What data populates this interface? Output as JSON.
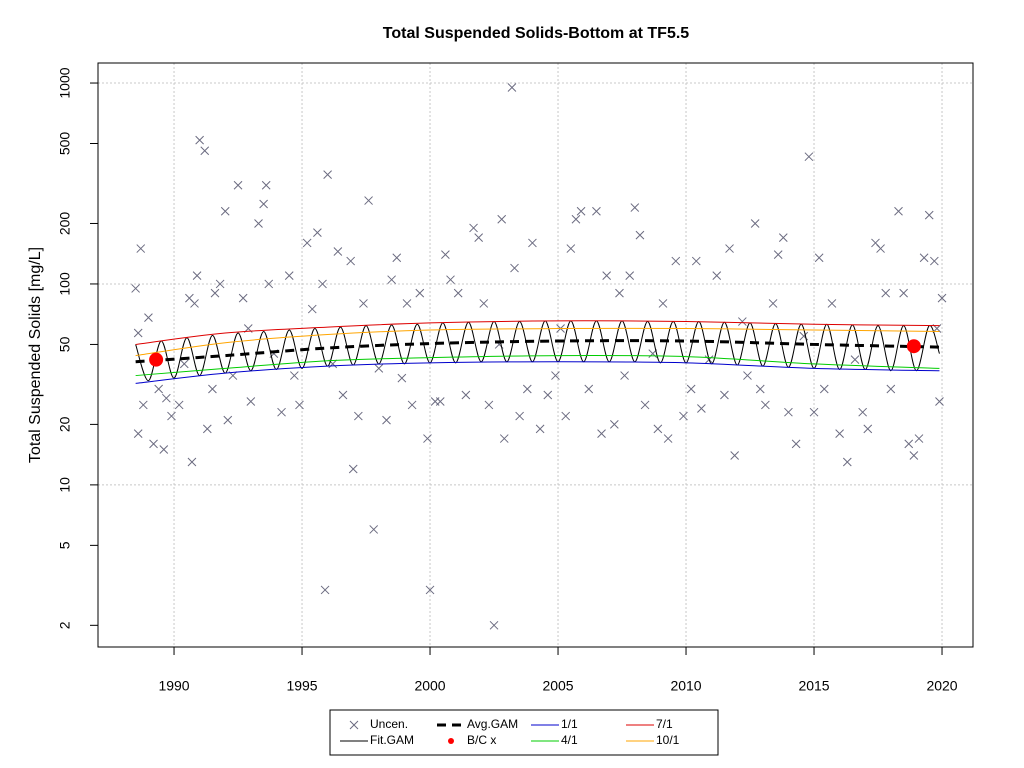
{
  "chart_data": {
    "type": "scatter",
    "title": "Total Suspended Solids-Bottom at TF5.5",
    "y_label": "Total Suspended Solids [mg/L]",
    "xlim": [
      1987.03,
      2021.21
    ],
    "xticks": [
      1990,
      1995,
      2000,
      2005,
      2010,
      2015,
      2020
    ],
    "ylim": [
      1.56,
      1258
    ],
    "yticks": [
      2,
      5,
      10,
      20,
      50,
      100,
      200,
      500,
      1000
    ],
    "log_y": true,
    "grid": true,
    "legend": "bottom",
    "series": [
      {
        "name": "Uncen.",
        "mode": "markers",
        "marker": "x",
        "color": "#6b6b80",
        "x": [
          1988.5,
          1988.6,
          1988.7,
          1988.6,
          1988.8,
          1989.0,
          1989.2,
          1989.4,
          1989.6,
          1989.7,
          1989.9,
          1990.2,
          1990.4,
          1990.6,
          1990.7,
          1990.8,
          1990.9,
          1991.0,
          1991.2,
          1991.3,
          1991.5,
          1991.6,
          1991.8,
          1992.0,
          1992.1,
          1992.3,
          1992.5,
          1992.7,
          1992.9,
          1993.0,
          1993.3,
          1993.5,
          1993.6,
          1993.7,
          1993.9,
          1994.2,
          1994.5,
          1994.7,
          1994.9,
          1995.2,
          1995.4,
          1995.6,
          1995.8,
          1995.9,
          1996.0,
          1996.2,
          1996.4,
          1996.6,
          1996.9,
          1997.0,
          1997.2,
          1997.4,
          1997.6,
          1997.8,
          1998.0,
          1998.3,
          1998.5,
          1998.7,
          1998.9,
          1999.1,
          1999.3,
          1999.6,
          1999.9,
          2000.0,
          2000.2,
          2000.4,
          2000.6,
          2000.8,
          2001.1,
          2001.4,
          2001.7,
          2001.9,
          2002.1,
          2002.3,
          2002.5,
          2002.7,
          2002.8,
          2002.9,
          2003.2,
          2003.3,
          2003.5,
          2003.8,
          2004.0,
          2004.3,
          2004.6,
          2004.9,
          2005.1,
          2005.3,
          2005.5,
          2005.7,
          2005.9,
          2006.2,
          2006.5,
          2006.7,
          2006.9,
          2007.2,
          2007.4,
          2007.6,
          2007.8,
          2008.0,
          2008.2,
          2008.4,
          2008.7,
          2008.9,
          2009.1,
          2009.3,
          2009.6,
          2009.9,
          2010.2,
          2010.4,
          2010.6,
          2010.9,
          2011.2,
          2011.5,
          2011.7,
          2011.9,
          2012.2,
          2012.4,
          2012.7,
          2012.9,
          2013.1,
          2013.4,
          2013.6,
          2013.8,
          2014.0,
          2014.3,
          2014.6,
          2014.8,
          2015.0,
          2015.2,
          2015.4,
          2015.7,
          2016.0,
          2016.3,
          2016.6,
          2016.9,
          2017.1,
          2017.4,
          2017.6,
          2017.8,
          2018.0,
          2018.3,
          2018.5,
          2018.7,
          2018.9,
          2019.1,
          2019.3,
          2019.5,
          2019.7,
          2019.8,
          2019.9,
          2020.0
        ],
        "values": [
          95,
          18,
          150,
          57,
          25,
          68,
          16,
          30,
          15,
          27,
          22,
          25,
          40,
          85,
          13,
          80,
          110,
          520,
          460,
          19,
          30,
          90,
          100,
          230,
          21,
          35,
          310,
          85,
          60,
          26,
          200,
          250,
          310,
          100,
          45,
          23,
          110,
          35,
          25,
          160,
          75,
          180,
          100,
          3,
          350,
          40,
          145,
          28,
          130,
          12,
          22,
          80,
          260,
          6,
          38,
          21,
          105,
          135,
          34,
          80,
          25,
          90,
          17,
          3,
          26,
          26,
          140,
          105,
          90,
          28,
          190,
          170,
          80,
          25,
          2,
          50,
          210,
          17,
          950,
          120,
          22,
          30,
          160,
          19,
          28,
          35,
          60,
          22,
          150,
          210,
          230,
          30,
          230,
          18,
          110,
          20,
          90,
          35,
          110,
          240,
          175,
          25,
          45,
          19,
          80,
          17,
          130,
          22,
          30,
          130,
          24,
          42,
          110,
          28,
          150,
          14,
          65,
          35,
          200,
          30,
          25,
          80,
          140,
          170,
          23,
          16,
          55,
          430,
          23,
          135,
          30,
          80,
          18,
          13,
          42,
          23,
          19,
          160,
          150,
          90,
          30,
          230,
          90,
          16,
          14,
          17,
          135,
          220,
          130,
          60,
          26,
          85
        ]
      },
      {
        "name": "Fit.GAM",
        "mode": "lines",
        "color": "#000000",
        "smooth": true,
        "width": 1,
        "x": [
          1988.5,
          1989,
          1989.5,
          1990,
          1990.5,
          1991,
          1991.5,
          1992,
          1992.5,
          1993,
          1993.5,
          1994,
          1994.5,
          1995,
          1995.5,
          1996,
          1996.5,
          1997,
          1997.5,
          1998,
          1998.5,
          1999,
          1999.5,
          2000,
          2000.5,
          2001,
          2001.5,
          2002,
          2002.5,
          2003,
          2003.5,
          2004,
          2004.5,
          2005,
          2005.5,
          2006,
          2006.5,
          2007,
          2007.5,
          2008,
          2008.5,
          2009,
          2009.5,
          2010,
          2010.5,
          2011,
          2011.5,
          2012,
          2012.5,
          2013,
          2013.5,
          2014,
          2014.5,
          2015,
          2015.5,
          2016,
          2016.5,
          2017,
          2017.5,
          2018,
          2018.5,
          2019,
          2019.5,
          2019.9
        ],
        "values": [
          50,
          33,
          52,
          34,
          54,
          35,
          55.5,
          36,
          57,
          37,
          58,
          37.5,
          59,
          38,
          60,
          39,
          61,
          39.5,
          62,
          40,
          62.5,
          40,
          63,
          40.5,
          64,
          40.5,
          64.5,
          41,
          65,
          41,
          65,
          41,
          65.5,
          41,
          65.5,
          41,
          65.5,
          41,
          65.5,
          41,
          65,
          40.5,
          65,
          40.5,
          65,
          40,
          64.5,
          39.5,
          64,
          39,
          63.5,
          38.5,
          63,
          38,
          63,
          37.5,
          62.5,
          37.5,
          62,
          37,
          62,
          37,
          62,
          45
        ]
      },
      {
        "name": "Avg.GAM",
        "mode": "lines",
        "color": "#000000",
        "smooth": true,
        "width": 3,
        "dash": true,
        "x": [
          1988.5,
          1992,
          1996,
          2000,
          2005,
          2010,
          2015,
          2019.9
        ],
        "values": [
          41,
          44,
          48,
          50.5,
          52,
          52,
          50,
          48.5
        ]
      },
      {
        "name": "B/C x",
        "mode": "markers",
        "marker": "o",
        "color": "#ff0000",
        "x": [
          1989.3,
          2018.9
        ],
        "values": [
          42,
          49
        ]
      },
      {
        "name": "1/1",
        "mode": "lines",
        "color": "#0000cc",
        "smooth": true,
        "width": 1,
        "x": [
          1988.5,
          1992,
          1996,
          2000,
          2005,
          2010,
          2015,
          2019.9
        ],
        "values": [
          32,
          36,
          39,
          40.5,
          41,
          40.5,
          38,
          37
        ]
      },
      {
        "name": "4/1",
        "mode": "lines",
        "color": "#00cc00",
        "smooth": true,
        "width": 1,
        "x": [
          1988.5,
          1992,
          1996,
          2000,
          2005,
          2010,
          2015,
          2019.9
        ],
        "values": [
          35,
          38,
          41.5,
          43,
          44,
          43.5,
          40,
          38
        ]
      },
      {
        "name": "7/1",
        "mode": "lines",
        "color": "#dd0000",
        "smooth": true,
        "width": 1,
        "x": [
          1988.5,
          1992,
          1996,
          2000,
          2005,
          2010,
          2015,
          2019.9
        ],
        "values": [
          50,
          57,
          61,
          64,
          65.5,
          65,
          63,
          62
        ]
      },
      {
        "name": "10/1",
        "mode": "lines",
        "color": "#ffa500",
        "smooth": true,
        "width": 1,
        "x": [
          1988.5,
          1992,
          1996,
          2000,
          2005,
          2010,
          2015,
          2019.9
        ],
        "values": [
          44,
          51,
          56,
          59,
          60,
          60,
          59,
          58
        ]
      }
    ]
  }
}
